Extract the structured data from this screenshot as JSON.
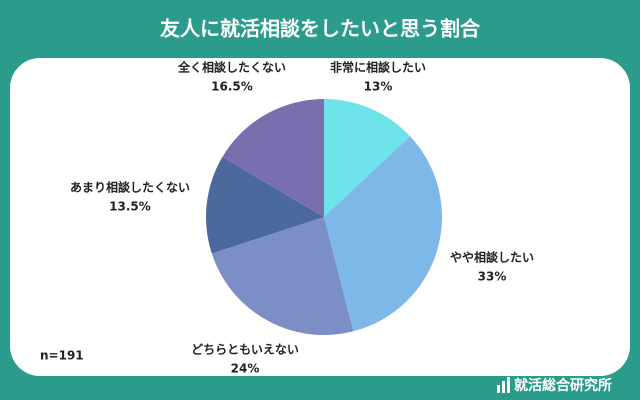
{
  "chart_data": {
    "type": "pie",
    "title": "友人に就活相談をしたいと思う割合",
    "categories": [
      "非常に相談したい",
      "やや相談したい",
      "どちらともいえない",
      "あまり相談したくない",
      "全く相談したくない"
    ],
    "values": [
      13,
      33,
      24,
      13.5,
      16.5
    ],
    "value_labels": [
      "13%",
      "33%",
      "24%",
      "13.5%",
      "16.5%"
    ],
    "colors": [
      "#6ee3ea",
      "#7db8e8",
      "#7b8fc6",
      "#4b6a9b",
      "#7a6fae"
    ],
    "note": "n=191",
    "source": "就活総合研究所"
  }
}
